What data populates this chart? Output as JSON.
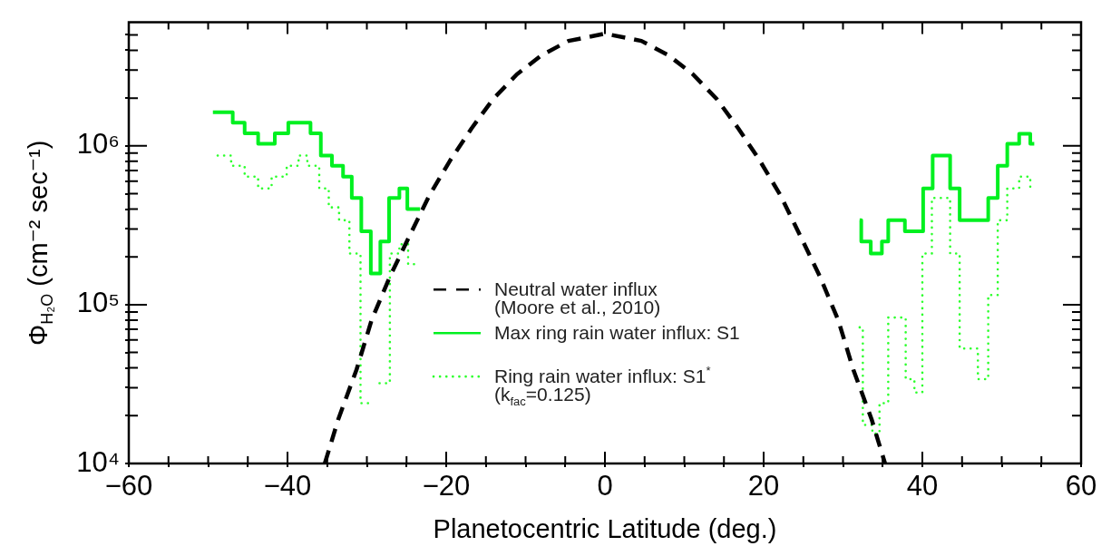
{
  "chart_data": {
    "type": "line",
    "xlabel": "Planetocentric Latitude (deg.)",
    "ylabel": "Φ$_{H₂O}$ (cm⁻² sec⁻¹)",
    "log": "y",
    "marker": "none",
    "legend": "center",
    "xlim": [
      -60,
      60
    ],
    "xticks": [
      {
        "value": -60,
        "label": "−60"
      },
      {
        "value": -55,
        "label": null
      },
      {
        "value": -50,
        "label": null
      },
      {
        "value": -45,
        "label": null
      },
      {
        "value": -40,
        "label": "−40"
      },
      {
        "value": -35,
        "label": null
      },
      {
        "value": -30,
        "label": null
      },
      {
        "value": -25,
        "label": null
      },
      {
        "value": -20,
        "label": "−20"
      },
      {
        "value": -15,
        "label": null
      },
      {
        "value": -10,
        "label": null
      },
      {
        "value": -5,
        "label": null
      },
      0,
      {
        "value": 5,
        "label": null
      },
      {
        "value": 10,
        "label": null
      },
      {
        "value": 15,
        "label": null
      },
      20,
      {
        "value": 25,
        "label": null
      },
      {
        "value": 30,
        "label": null
      },
      {
        "value": 35,
        "label": null
      },
      40,
      {
        "value": 45,
        "label": null
      },
      {
        "value": 50,
        "label": null
      },
      {
        "value": 55,
        "label": null
      },
      60
    ],
    "ylim": [
      10000,
      6000000
    ],
    "yticks": [
      {
        "value": 10000,
        "label": "10⁴"
      },
      {
        "value": 20000,
        "label": null
      },
      {
        "value": 30000,
        "label": null
      },
      {
        "value": 40000,
        "label": null
      },
      {
        "value": 50000,
        "label": null
      },
      {
        "value": 60000,
        "label": null
      },
      {
        "value": 70000,
        "label": null
      },
      {
        "value": 80000,
        "label": null
      },
      {
        "value": 90000,
        "label": null
      },
      {
        "value": 100000,
        "label": "10⁵"
      },
      {
        "value": 200000,
        "label": null
      },
      {
        "value": 300000,
        "label": null
      },
      {
        "value": 400000,
        "label": null
      },
      {
        "value": 500000,
        "label": null
      },
      {
        "value": 600000,
        "label": null
      },
      {
        "value": 700000,
        "label": null
      },
      {
        "value": 800000,
        "label": null
      },
      {
        "value": 900000,
        "label": null
      },
      {
        "value": 1000000,
        "label": "10⁶"
      },
      {
        "value": 2000000,
        "label": null
      },
      {
        "value": 3000000,
        "label": null
      },
      {
        "value": 4000000,
        "label": null
      },
      {
        "value": 5000000,
        "label": null
      }
    ],
    "series": [
      {
        "name": "Neutral water influx\n(Moore et al., 2010)",
        "type": "line",
        "line_style": "dashed",
        "color": "#000000",
        "x": [
          -35.3,
          -33.6,
          -31.3,
          -29.4,
          -27.1,
          -24.8,
          -22.1,
          -19.5,
          -16.8,
          -14.1,
          -11.1,
          -8.0,
          -4.6,
          0,
          4.6,
          8.0,
          11.1,
          14.1,
          16.8,
          19.5,
          22.1,
          24.8,
          27.1,
          29.4,
          31.3,
          33.6,
          35.3
        ],
        "values": [
          10000,
          19000,
          39000,
          80000,
          150000,
          260000,
          490000,
          810000,
          1290000,
          1970000,
          2820000,
          3720000,
          4580000,
          5090000,
          4580000,
          3720000,
          2820000,
          1970000,
          1290000,
          810000,
          490000,
          260000,
          150000,
          80000,
          39000,
          19000,
          10000
        ]
      },
      {
        "name": "Max ring rain water influx: S1",
        "type": "step",
        "line_style": "solid",
        "color": "#00f020",
        "x": [
          -49.4,
          -46.9,
          -45.4,
          -43.7,
          -41.6,
          -39.9,
          -37.1,
          -35.8,
          -34.4,
          -33.0,
          -31.9,
          -30.7,
          -29.5,
          -28.3,
          -27.2,
          -25.9,
          -24.9,
          -23.3,
          32.1,
          32.3,
          33.5,
          34.9,
          35.7,
          37.8,
          40.1,
          41.3,
          43.5,
          44.7,
          48.3,
          49.5,
          50.7,
          52.2,
          53.6,
          54.1
        ],
        "values": [
          1630000,
          1400000,
          1200000,
          1030000,
          1200000,
          1400000,
          1200000,
          870000,
          750000,
          640000,
          470000,
          290000,
          157000,
          250000,
          470000,
          540000,
          400000,
          null,
          340000,
          250000,
          210000,
          250000,
          340000,
          290000,
          540000,
          870000,
          540000,
          340000,
          470000,
          750000,
          1030000,
          1190000,
          1030000,
          1030000
        ]
      },
      {
        "name": "Ring rain water influx: S1$^{*}$\n(k$_{fac}$=0.125)",
        "type": "step",
        "line_style": "dotted",
        "color": "#2cff2c",
        "x": [
          -48.8,
          -47.1,
          -45.4,
          -43.7,
          -42.0,
          -40.1,
          -38.6,
          -37.5,
          -36.0,
          -34.8,
          -33.5,
          -32.2,
          -30.8,
          -29.6,
          -28.4,
          -27.1,
          -25.9,
          -24.8,
          -23.3,
          32.1,
          32.5,
          33.7,
          34.6,
          35.7,
          37.9,
          39.0,
          40.0,
          41.2,
          43.5,
          44.7,
          47.0,
          48.3,
          49.5,
          50.7,
          52.2,
          53.6,
          54.1
        ],
        "values": [
          870000,
          750000,
          640000,
          540000,
          640000,
          750000,
          870000,
          750000,
          540000,
          410000,
          340000,
          210000,
          24000,
          null,
          32000,
          210000,
          240000,
          180000,
          null,
          72000,
          17500,
          15400,
          24000,
          83000,
          34000,
          28000,
          210000,
          470000,
          210000,
          53000,
          34000,
          115000,
          340000,
          540000,
          640000,
          540000,
          540000
        ]
      }
    ]
  }
}
